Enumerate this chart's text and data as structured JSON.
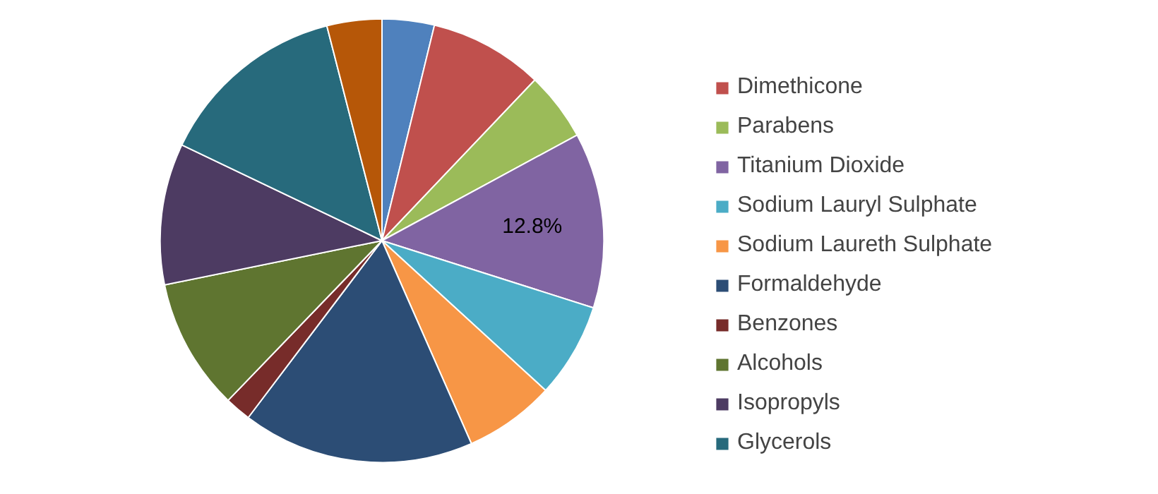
{
  "chart_data": {
    "type": "pie",
    "categories": [
      null,
      "Dimethicone",
      "Parabens",
      "Titanium Dioxide",
      "Sodium Lauryl Sulphate",
      "Sodium Laureth Sulphate",
      "Formaldehyde",
      "Benzones",
      "Alcohols",
      "Isopropyls",
      "Glycerols",
      null
    ],
    "values": [
      3.8,
      8.3,
      5.0,
      12.8,
      6.9,
      6.6,
      16.9,
      1.9,
      9.6,
      10.3,
      13.9,
      4.0
    ],
    "colors": [
      "#4f81bd",
      "#c0504d",
      "#9bbb59",
      "#8064a2",
      "#4bacc6",
      "#f79646",
      "#2c4d75",
      "#772c2a",
      "#5f7530",
      "#4d3b62",
      "#276a7c",
      "#b65708"
    ],
    "value_labels": [
      null,
      null,
      null,
      "12.8%",
      null,
      null,
      null,
      null,
      null,
      null,
      null,
      null
    ],
    "legend": "right"
  }
}
